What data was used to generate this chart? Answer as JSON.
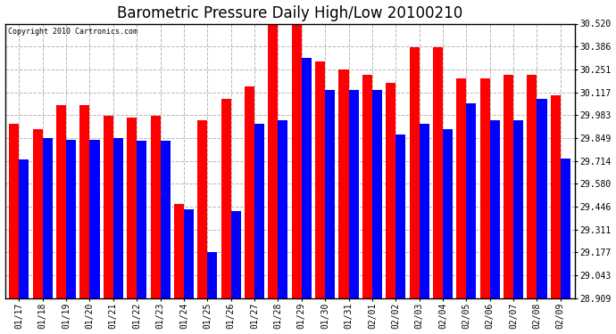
{
  "title": "Barometric Pressure Daily High/Low 20100210",
  "copyright": "Copyright 2010 Cartronics.com",
  "dates": [
    "01/17",
    "01/18",
    "01/19",
    "01/20",
    "01/21",
    "01/22",
    "01/23",
    "01/24",
    "01/25",
    "01/26",
    "01/27",
    "01/28",
    "01/29",
    "01/30",
    "01/31",
    "02/01",
    "02/02",
    "02/03",
    "02/04",
    "02/05",
    "02/06",
    "02/07",
    "02/08",
    "02/09"
  ],
  "highs": [
    29.93,
    29.9,
    30.04,
    30.04,
    29.98,
    29.97,
    29.98,
    29.46,
    29.95,
    30.08,
    30.15,
    30.52,
    30.52,
    30.3,
    30.25,
    30.22,
    30.17,
    30.38,
    30.38,
    30.2,
    30.2,
    30.22,
    30.22,
    30.1
  ],
  "lows": [
    29.72,
    29.85,
    29.84,
    29.84,
    29.85,
    29.83,
    29.83,
    29.43,
    29.18,
    29.42,
    29.93,
    29.95,
    30.32,
    30.13,
    30.13,
    30.13,
    29.87,
    29.93,
    29.9,
    30.05,
    29.95,
    29.95,
    30.08,
    29.73
  ],
  "ymin": 28.909,
  "ymax": 30.52,
  "yticks": [
    28.909,
    29.043,
    29.177,
    29.311,
    29.446,
    29.58,
    29.714,
    29.849,
    29.983,
    30.117,
    30.251,
    30.386,
    30.52
  ],
  "high_color": "#ff0000",
  "low_color": "#0000ff",
  "bg_color": "#ffffff",
  "grid_color": "#b0b0b0",
  "title_fontsize": 12,
  "tick_fontsize": 7
}
